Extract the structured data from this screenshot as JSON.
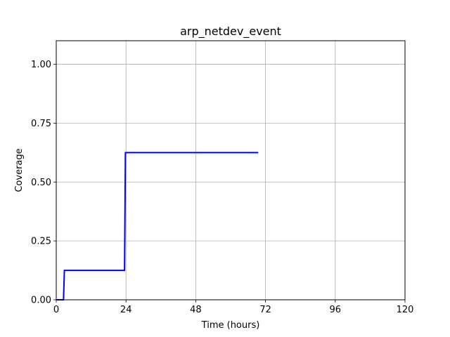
{
  "chart_data": {
    "type": "line",
    "title": "arp_netdev_event",
    "xlabel": "Time (hours)",
    "ylabel": "Coverage",
    "xlim": [
      0,
      120
    ],
    "ylim": [
      0,
      1.1
    ],
    "xticks": [
      0,
      24,
      48,
      72,
      96,
      120
    ],
    "xtick_labels": [
      "0",
      "24",
      "48",
      "72",
      "96",
      "120"
    ],
    "yticks": [
      0,
      0.25,
      0.5,
      0.75,
      1.0
    ],
    "ytick_labels": [
      "0.00",
      "0.25",
      "0.50",
      "0.75",
      "1.00"
    ],
    "grid": true,
    "series": [
      {
        "color": "#0000ff",
        "step": true,
        "x": [
          0,
          2.5,
          2.8,
          23.5,
          23.8,
          69.5
        ],
        "y": [
          0,
          0,
          0.125,
          0.125,
          0.625,
          0.625
        ]
      }
    ]
  }
}
